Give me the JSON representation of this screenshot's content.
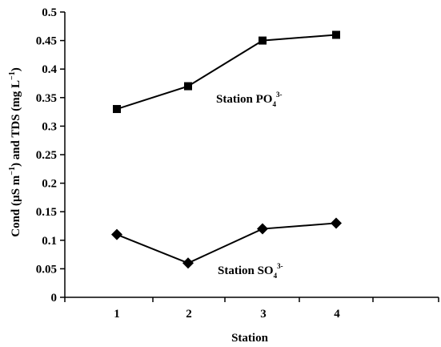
{
  "chart_data": {
    "type": "line",
    "xlabel": "Station",
    "ylabel_parts": [
      "Cond (µS m",
      "−1",
      ") and TDS (mg L",
      "−1",
      ")"
    ],
    "categories": [
      "1",
      "2",
      "3",
      "4"
    ],
    "ylim": [
      0,
      0.5
    ],
    "yticks": [
      "0",
      "0.05",
      "0.1",
      "0.15",
      "0.2",
      "0.25",
      "0.3",
      "0.35",
      "0.4",
      "0.45",
      "0.5"
    ],
    "grid": false,
    "series": [
      {
        "name_main": "Station PO",
        "name_sub": "4",
        "name_sup": "3-",
        "marker": "square",
        "values": [
          0.33,
          0.37,
          0.45,
          0.46
        ]
      },
      {
        "name_main": "Station SO",
        "name_sub": "4",
        "name_sup": "3-",
        "marker": "diamond",
        "values": [
          0.11,
          0.06,
          0.12,
          0.13
        ]
      }
    ]
  }
}
